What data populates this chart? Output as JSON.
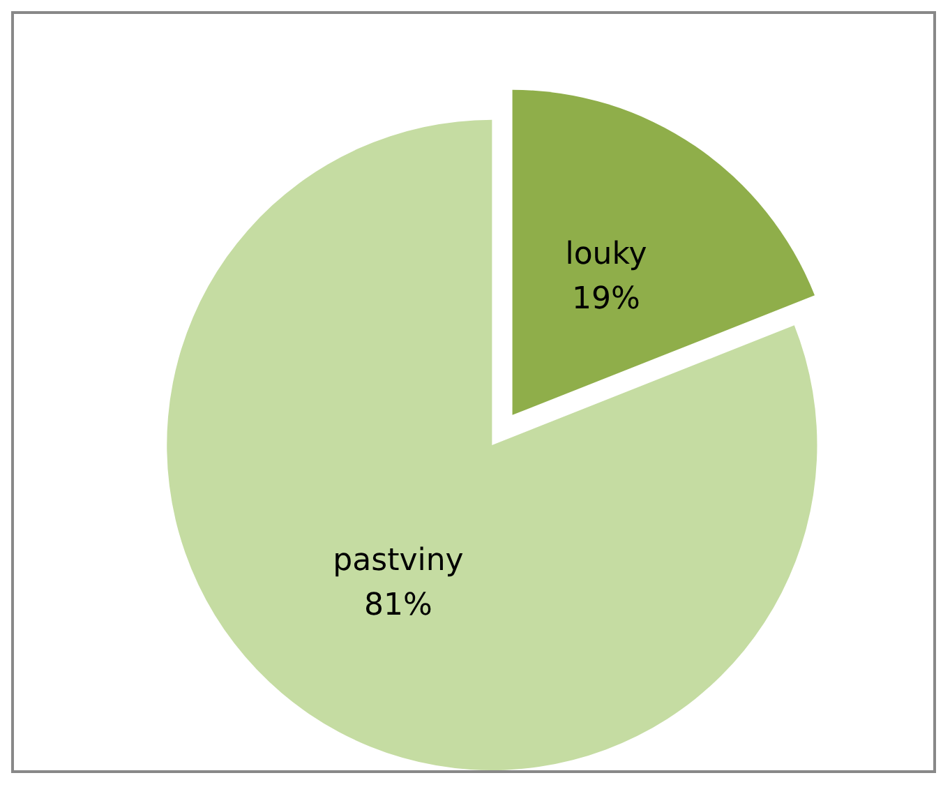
{
  "chart_data": {
    "type": "pie",
    "categories": [
      "louky",
      "pastviny"
    ],
    "values": [
      19,
      81
    ],
    "colors": [
      "#8fae4a",
      "#c5dca2"
    ],
    "value_labels": [
      "19%",
      "81%"
    ],
    "legend": false
  }
}
